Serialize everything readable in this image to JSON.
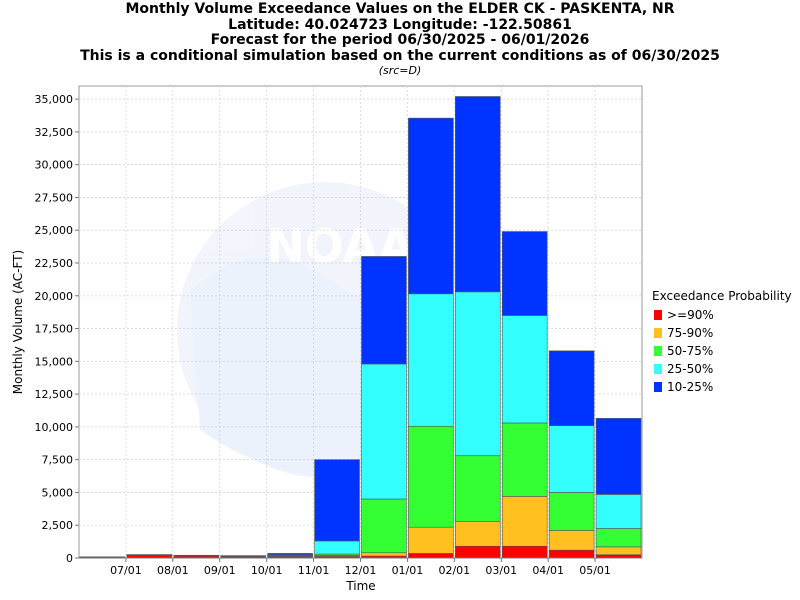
{
  "chart_data": {
    "type": "bar",
    "stacked": true,
    "title": "Monthly Volume Exceedance Values on the ELDER CK - PASKENTA, NR",
    "subtitle_lines": [
      "Latitude: 40.024723 Longitude: -122.50861",
      "Forecast for the period 06/30/2025 - 06/01/2026",
      "This is a conditional simulation based on the current conditions as of 06/30/2025"
    ],
    "source_note": "(src=D)",
    "xlabel": "Time",
    "ylabel": "Monthly Volume (AC-FT)",
    "ylim": [
      0,
      36000
    ],
    "yticks": [
      0,
      2500,
      5000,
      7500,
      10000,
      12500,
      15000,
      17500,
      20000,
      22500,
      25000,
      27500,
      30000,
      32500,
      35000
    ],
    "ytick_labels": [
      "0",
      "2,500",
      "5,000",
      "7,500",
      "10,000",
      "12,500",
      "15,000",
      "17,500",
      "20,000",
      "22,500",
      "25,000",
      "27,500",
      "30,000",
      "32,500",
      "35,000"
    ],
    "xtick_labels": [
      "07/01",
      "08/01",
      "09/01",
      "10/01",
      "11/01",
      "12/01",
      "01/01",
      "02/01",
      "03/01",
      "04/01",
      "05/01"
    ],
    "grid": true,
    "legend_title": "Exceedance Probability",
    "legend_position": "right",
    "categories": [
      "06/2025",
      "07/2025",
      "08/2025",
      "09/2025",
      "10/2025",
      "11/2025",
      "12/2025",
      "01/2026",
      "02/2026",
      "03/2026",
      "04/2026",
      "05/2026"
    ],
    "series": [
      {
        "name": ">=90%",
        "color": "#ff0000",
        "values": [
          60,
          220,
          170,
          140,
          120,
          120,
          150,
          350,
          900,
          900,
          600,
          250
        ]
      },
      {
        "name": "75-90%",
        "color": "#ffc020",
        "values": [
          5,
          10,
          10,
          10,
          30,
          80,
          250,
          2000,
          1900,
          3800,
          1500,
          600
        ]
      },
      {
        "name": "50-75%",
        "color": "#33ff33",
        "values": [
          5,
          10,
          10,
          10,
          50,
          100,
          4100,
          7700,
          5000,
          5600,
          2900,
          1400
        ]
      },
      {
        "name": "25-50%",
        "color": "#33ffff",
        "values": [
          5,
          10,
          10,
          10,
          50,
          1000,
          10300,
          10100,
          12500,
          8200,
          5100,
          2600
        ]
      },
      {
        "name": "10-25%",
        "color": "#0033ff",
        "values": [
          5,
          10,
          10,
          10,
          100,
          6200,
          8200,
          13400,
          14900,
          6400,
          5700,
          5800
        ]
      }
    ]
  }
}
